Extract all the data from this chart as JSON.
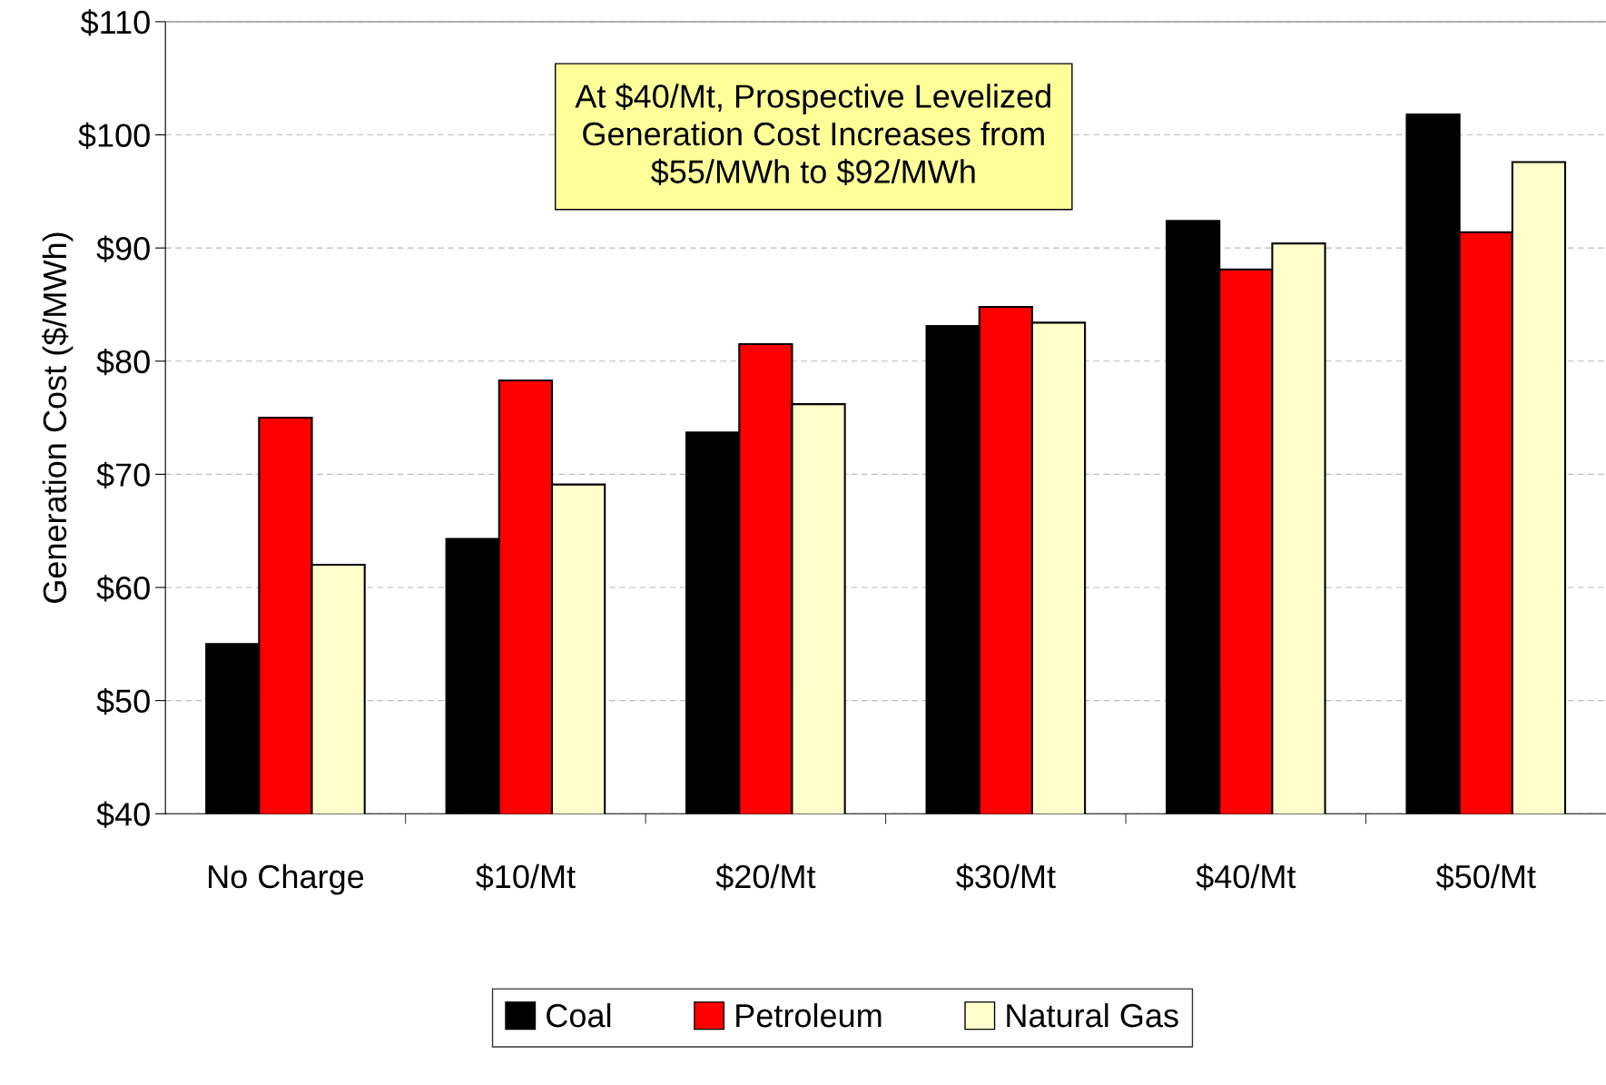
{
  "chart_data": {
    "type": "bar",
    "ylabel": "Generation Cost ($/MWh)",
    "categories": [
      "No Charge",
      "$10/Mt",
      "$20/Mt",
      "$30/Mt",
      "$40/Mt",
      "$50/Mt"
    ],
    "series": [
      {
        "name": "Coal",
        "color": "#000000",
        "values": [
          55,
          64.3,
          73.7,
          83.1,
          92.4,
          101.8
        ]
      },
      {
        "name": "Petroleum",
        "color": "#ff0000",
        "values": [
          75,
          78.3,
          81.5,
          84.8,
          88.1,
          91.4
        ]
      },
      {
        "name": "Natural Gas",
        "color": "#ffffcc",
        "values": [
          62,
          69.1,
          76.2,
          83.4,
          90.4,
          97.6
        ]
      }
    ],
    "ylim": [
      40,
      110
    ],
    "yticks": [
      {
        "value": 40,
        "label": "$40"
      },
      {
        "value": 50,
        "label": "$50"
      },
      {
        "value": 60,
        "label": "$60"
      },
      {
        "value": 70,
        "label": "$70"
      },
      {
        "value": 80,
        "label": "$80"
      },
      {
        "value": 90,
        "label": "$90"
      },
      {
        "value": 100,
        "label": "$100"
      },
      {
        "value": 110,
        "label": "$110"
      }
    ],
    "grid": "y",
    "legend": "bottom",
    "annotations": [
      "At $40/Mt, Prospective Levelized\nGeneration Cost Increases from\n$55/MWh to $92/MWh"
    ]
  }
}
